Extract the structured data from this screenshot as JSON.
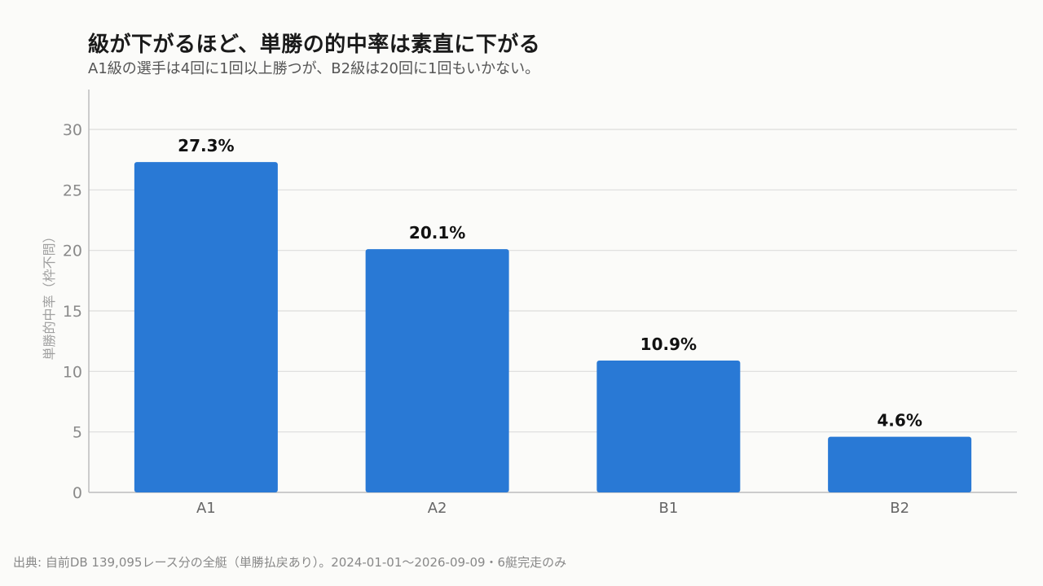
{
  "header": {
    "title": "級が下がるほど、単勝の的中率は素直に下がる",
    "subtitle": "A1級の選手は4回に1回以上勝つが、B2級は20回に1回もいかない。"
  },
  "footer": {
    "source": "出典: 自前DB 139,095レース分の全艇（単勝払戻あり）。2024-01-01〜2026-09-09・6艇完走のみ"
  },
  "colors": {
    "bar": "#2979d5",
    "grid": "#dcdcdc",
    "axis": "#bdbdbd",
    "tick_text": "#8a8a8a",
    "label_text": "#111111"
  },
  "chart_data": {
    "type": "bar",
    "categories": [
      "A1",
      "A2",
      "B1",
      "B2"
    ],
    "values": [
      27.3,
      20.1,
      10.9,
      4.6
    ],
    "value_labels": [
      "27.3%",
      "20.1%",
      "10.9%",
      "4.6%"
    ],
    "ylabel": "単勝的中率（枠不問）",
    "xlabel": "",
    "ylim": [
      0,
      30
    ],
    "yticks": [
      0,
      5,
      10,
      15,
      20,
      25,
      30
    ],
    "grid": true
  }
}
